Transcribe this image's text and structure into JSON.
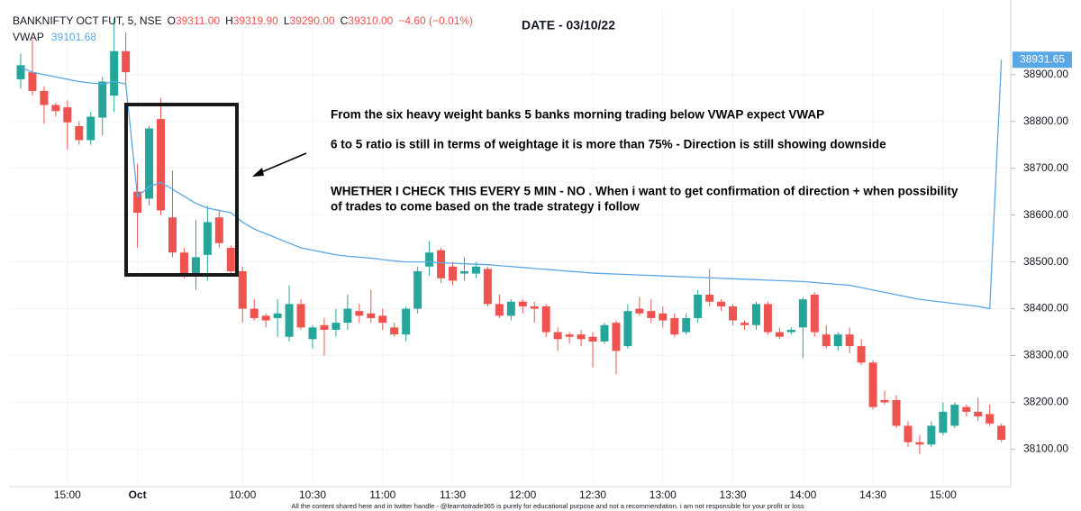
{
  "chart_data": {
    "type": "candlestick",
    "title": "DATE - 03/10/22",
    "header": {
      "symbol": "BANKNIFTY OCT FUT, 5, NSE",
      "o_label": "O",
      "o": "39311.00",
      "h_label": "H",
      "h": "39319.90",
      "l_label": "L",
      "l": "39290.00",
      "c_label": "C",
      "c": "39310.00",
      "change": "−4.60 (−0.01%)",
      "vwap_value": "39101.68"
    },
    "annotations": [
      "From the six heavy weight banks 5 banks morning trading below VWAP expect VWAP",
      "6 to 5 ratio is still in terms of weightage it is more than 75% - Direction is still showing downside",
      "WHETHER I CHECK THIS EVERY 5 MIN - NO . When i want to get confirmation of direction + when possibility",
      "of trades to come based on the trade strategy i follow"
    ],
    "footer": "All the content shared here and in twitter handle - @learntotrade365 is purely for educational purpose and not a recommendation. i am not responsible for your profit or loss",
    "categories": [
      null,
      null,
      null,
      null,
      "15:00",
      null,
      null,
      null,
      null,
      null,
      "Oct",
      null,
      null,
      null,
      null,
      null,
      null,
      null,
      null,
      "10:00",
      null,
      null,
      null,
      null,
      null,
      "10:30",
      null,
      null,
      null,
      null,
      null,
      "11:00",
      null,
      null,
      null,
      null,
      null,
      "11:30",
      null,
      null,
      null,
      null,
      null,
      "12:00",
      null,
      null,
      null,
      null,
      null,
      "12:30",
      null,
      null,
      null,
      null,
      null,
      "13:00",
      null,
      null,
      null,
      null,
      null,
      "13:30",
      null,
      null,
      null,
      null,
      null,
      "14:00",
      null,
      null,
      null,
      null,
      null,
      "14:30",
      null,
      null,
      null,
      null,
      null,
      "15:00",
      null,
      null,
      null,
      null,
      null
    ],
    "open": [
      38890,
      38905,
      38865,
      38835,
      38830,
      38790,
      38760,
      38808,
      38855,
      38950,
      38650,
      38635,
      38805,
      38595,
      38520,
      38470,
      38515,
      38595,
      38530,
      38480,
      38400,
      38385,
      38380,
      38340,
      38410,
      38335,
      38365,
      38355,
      38370,
      38395,
      38390,
      38385,
      38360,
      38345,
      38400,
      38490,
      38525,
      38490,
      38475,
      38475,
      38485,
      38410,
      38385,
      38415,
      38405,
      38405,
      38350,
      38345,
      38345,
      38340,
      38330,
      38370,
      38320,
      38400,
      38395,
      38390,
      38380,
      38350,
      38380,
      38430,
      38415,
      38405,
      38370,
      38365,
      38410,
      38350,
      38350,
      38360,
      38430,
      38345,
      38320,
      38345,
      38320,
      38285,
      38205,
      38205,
      38150,
      38115,
      38110,
      38135,
      38150,
      38190,
      38180,
      38175,
      38150
    ],
    "high": [
      38945,
      38975,
      38875,
      38840,
      38845,
      38800,
      38820,
      38895,
      39020,
      38990,
      38710,
      38790,
      38850,
      38695,
      38530,
      38590,
      38620,
      38610,
      38535,
      38490,
      38420,
      38390,
      38420,
      38450,
      38420,
      38365,
      38380,
      38400,
      38430,
      38410,
      38440,
      38400,
      38370,
      38405,
      38490,
      38545,
      38530,
      38500,
      38510,
      38500,
      38490,
      38430,
      38420,
      38420,
      38415,
      38410,
      38360,
      38350,
      38355,
      38350,
      38370,
      38375,
      38410,
      38425,
      38420,
      38405,
      38390,
      38390,
      38440,
      38485,
      38420,
      38410,
      38375,
      38415,
      38415,
      38360,
      38360,
      38425,
      38435,
      38365,
      38350,
      38360,
      38335,
      38290,
      38225,
      38215,
      38160,
      38130,
      38160,
      38200,
      38200,
      38195,
      38210,
      38195,
      38155
    ],
    "low": [
      38870,
      38855,
      38795,
      38810,
      38740,
      38750,
      38750,
      38770,
      38820,
      38880,
      38530,
      38620,
      38600,
      38510,
      38465,
      38440,
      38460,
      38530,
      38470,
      38370,
      38375,
      38360,
      38340,
      38330,
      38355,
      38315,
      38300,
      38340,
      38355,
      38370,
      38370,
      38355,
      38340,
      38330,
      38390,
      38470,
      38455,
      38450,
      38460,
      38465,
      38405,
      38380,
      38375,
      38390,
      38370,
      38340,
      38310,
      38325,
      38320,
      38275,
      38325,
      38260,
      38315,
      38385,
      38370,
      38360,
      38340,
      38345,
      38370,
      38405,
      38395,
      38365,
      38355,
      38355,
      38345,
      38335,
      38345,
      38295,
      38340,
      38315,
      38310,
      38305,
      38280,
      38185,
      38195,
      38145,
      38105,
      38090,
      38105,
      38130,
      38145,
      38170,
      38160,
      38150,
      38115
    ],
    "close": [
      38920,
      38865,
      38835,
      38822,
      38798,
      38760,
      38810,
      38885,
      38950,
      38905,
      38605,
      38785,
      38610,
      38520,
      38470,
      38510,
      38585,
      38540,
      38480,
      38400,
      38380,
      38375,
      38390,
      38410,
      38360,
      38360,
      38355,
      38370,
      38400,
      38385,
      38380,
      38370,
      38345,
      38400,
      38480,
      38520,
      38465,
      38460,
      38480,
      38490,
      38410,
      38385,
      38415,
      38405,
      38400,
      38350,
      38335,
      38340,
      38335,
      38330,
      38365,
      38310,
      38395,
      38390,
      38380,
      38375,
      38345,
      38380,
      38430,
      38415,
      38405,
      38375,
      38365,
      38410,
      38350,
      38340,
      38355,
      38420,
      38350,
      38320,
      38345,
      38320,
      38285,
      38190,
      38200,
      38150,
      38115,
      38110,
      38150,
      38180,
      38195,
      38180,
      38170,
      38155,
      38120
    ],
    "up_color": "#26a69a",
    "down_color": "#ef5350",
    "vwap": {
      "name": "VWAP",
      "color": "#5aa7e6",
      "values": [
        38915,
        38905,
        38900,
        38895,
        38890,
        38885,
        38882,
        38880,
        38885,
        38880,
        38640,
        38660,
        38670,
        38655,
        38640,
        38625,
        38615,
        38610,
        38605,
        38585,
        38570,
        38560,
        38550,
        38540,
        38530,
        38525,
        38520,
        38515,
        38512,
        38510,
        38508,
        38505,
        38502,
        38500,
        38500,
        38500,
        38498,
        38497,
        38496,
        38495,
        38494,
        38492,
        38490,
        38488,
        38486,
        38484,
        38482,
        38480,
        38478,
        38476,
        38475,
        38474,
        38473,
        38472,
        38471,
        38470,
        38469,
        38468,
        38467,
        38466,
        38465,
        38464,
        38463,
        38462,
        38461,
        38460,
        38459,
        38458,
        38456,
        38454,
        38452,
        38450,
        38445,
        38440,
        38435,
        38430,
        38425,
        38420,
        38417,
        38414,
        38411,
        38408,
        38405,
        38400,
        38931.65
      ]
    },
    "ylim": [
      38020,
      39040
    ],
    "yticks": [
      {
        "value": 38100,
        "label": "38100.00"
      },
      {
        "value": 38200,
        "label": "38200.00"
      },
      {
        "value": 38300,
        "label": "38300.00"
      },
      {
        "value": 38400,
        "label": "38400.00"
      },
      {
        "value": 38500,
        "label": "38500.00"
      },
      {
        "value": 38600,
        "label": "38600.00"
      },
      {
        "value": 38700,
        "label": "38700.00"
      },
      {
        "value": 38800,
        "label": "38800.00"
      },
      {
        "value": 38900,
        "label": "38900.00"
      }
    ]
  }
}
